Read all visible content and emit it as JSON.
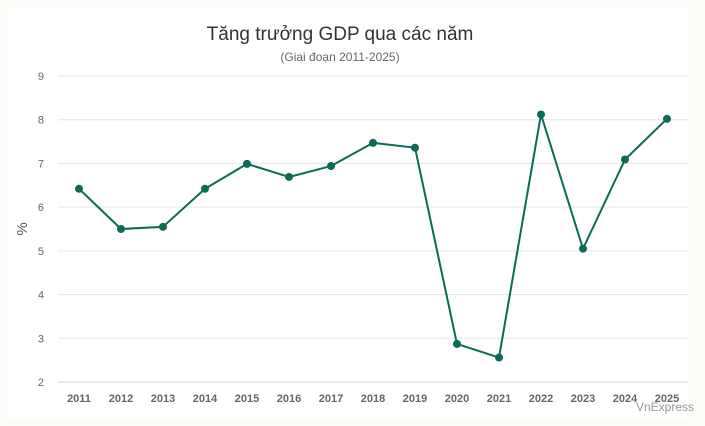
{
  "chart_data": {
    "type": "line",
    "title": "Tăng trưởng GDP qua các năm",
    "subtitle": "(Giai đoạn 2011-2025)",
    "ylabel": "%",
    "xlabel": "",
    "ylim": [
      2,
      9
    ],
    "yticks": [
      2,
      3,
      4,
      5,
      6,
      7,
      8,
      9
    ],
    "grid": true,
    "categories": [
      "2011",
      "2012",
      "2013",
      "2014",
      "2015",
      "2016",
      "2017",
      "2018",
      "2019",
      "2020",
      "2021",
      "2022",
      "2023",
      "2024",
      "2025"
    ],
    "series": [
      {
        "values": [
          6.42,
          5.5,
          5.55,
          6.42,
          6.99,
          6.69,
          6.94,
          7.47,
          7.36,
          2.87,
          2.56,
          8.12,
          5.05,
          7.09,
          8.02
        ]
      }
    ],
    "line_color": "#0b6b57",
    "grid_color": "#e6e6e6",
    "axis_color": "#ccd6eb"
  },
  "credit": "VnExpress"
}
